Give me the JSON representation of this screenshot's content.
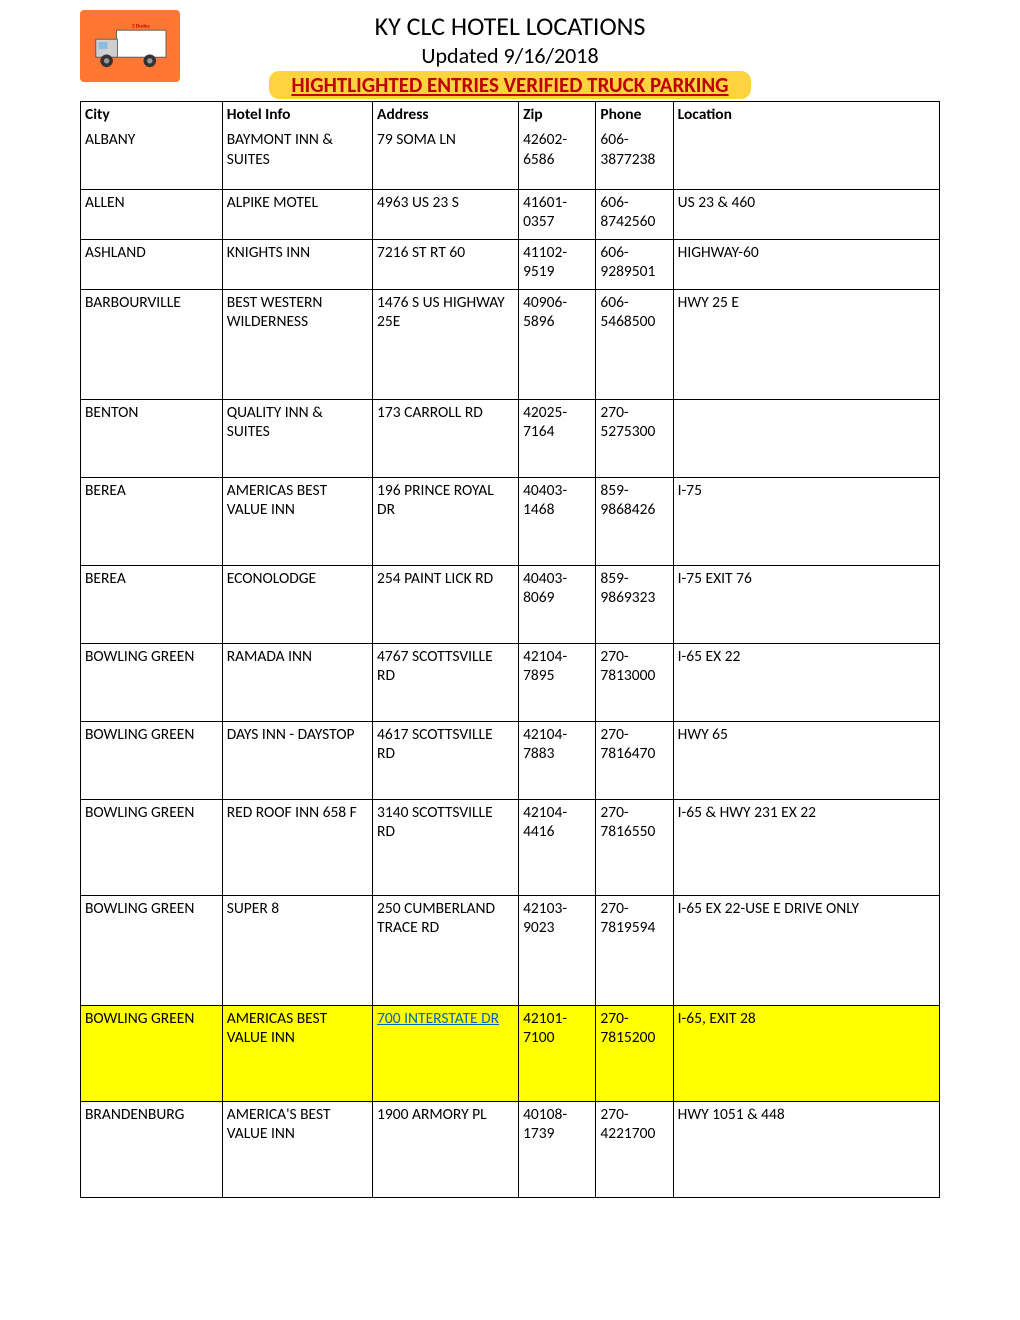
{
  "header": {
    "title": "KY CLC HOTEL LOCATIONS",
    "subtitle": "Updated 9/16/2018",
    "banner": "HIGHTLIGHTED ENTRIES VERIFIED TRUCK PARKING"
  },
  "colors": {
    "banner_bg": "#ffd33d",
    "banner_text": "#c00000",
    "highlight_bg": "#ffff00",
    "link": "#0563c1",
    "logo_bg": "#ff7733"
  },
  "columns": [
    "City",
    "Hotel Info",
    "Address",
    "Zip",
    "Phone",
    "Location"
  ],
  "rows": [
    {
      "city": "ALBANY",
      "hotel": "BAYMONT INN & SUITES",
      "address": "79 SOMA LN",
      "zip": "42602-6586",
      "phone": "606-3877238",
      "location": "",
      "hl": false,
      "rh": "62"
    },
    {
      "city": "ALLEN",
      "hotel": "ALPIKE MOTEL",
      "address": "4963 US 23 S",
      "zip": "41601-0357",
      "phone": "606-8742560",
      "location": "US 23 & 460",
      "hl": false,
      "rh": "50"
    },
    {
      "city": "ASHLAND",
      "hotel": "KNIGHTS INN",
      "address": "7216 ST RT 60",
      "zip": "41102-9519",
      "phone": "606-9289501",
      "location": "HIGHWAY-60",
      "hl": false,
      "rh": "50"
    },
    {
      "city": "BARBOURVILLE",
      "hotel": "BEST WESTERN WILDERNESS",
      "address": "1476 S US HIGHWAY 25E",
      "zip": "40906-5896",
      "phone": "606-5468500",
      "location": "HWY 25 E",
      "hl": false,
      "rh": "110"
    },
    {
      "city": "BENTON",
      "hotel": "QUALITY INN & SUITES",
      "address": "173 CARROLL RD",
      "zip": "42025-7164",
      "phone": "270-5275300",
      "location": "",
      "hl": false,
      "rh": "78"
    },
    {
      "city": "BEREA",
      "hotel": "AMERICAS BEST VALUE INN",
      "address": "196 PRINCE ROYAL DR",
      "zip": "40403-1468",
      "phone": "859-9868426",
      "location": "I-75",
      "hl": false,
      "rh": "88"
    },
    {
      "city": "BEREA",
      "hotel": "ECONOLODGE",
      "address": "254 PAINT LICK RD",
      "zip": "40403-8069",
      "phone": "859-9869323",
      "location": "I-75 EXIT 76",
      "hl": false,
      "rh": "78"
    },
    {
      "city": "BOWLING GREEN",
      "hotel": "RAMADA INN",
      "address": "4767 SCOTTSVILLE RD",
      "zip": "42104-7895",
      "phone": "270-7813000",
      "location": "I-65 EX 22",
      "hl": false,
      "rh": "78"
    },
    {
      "city": "BOWLING GREEN",
      "hotel": "DAYS INN - DAYSTOP",
      "address": "4617 SCOTTSVILLE RD",
      "zip": "42104-7883",
      "phone": "270-7816470",
      "location": "HWY 65",
      "hl": false,
      "rh": "78"
    },
    {
      "city": "BOWLING GREEN",
      "hotel": "RED ROOF INN 658 F",
      "address": "3140 SCOTTSVILLE RD",
      "zip": "42104-4416",
      "phone": "270-7816550",
      "location": "I-65 & HWY 231 EX 22",
      "hl": false,
      "rh": "96"
    },
    {
      "city": "BOWLING GREEN",
      "hotel": "SUPER 8",
      "address": "250 CUMBERLAND TRACE RD",
      "zip": "42103-9023",
      "phone": "270-7819594",
      "location": "I-65 EX 22-USE E DRIVE ONLY",
      "hl": false,
      "rh": "110"
    },
    {
      "city": "BOWLING GREEN",
      "hotel": "AMERICAS BEST VALUE INN",
      "address": "700 INTERSTATE DR",
      "zip": "42101-7100",
      "phone": "270-7815200",
      "location": "I-65, EXIT 28",
      "hl": true,
      "rh": "96"
    },
    {
      "city": "BRANDENBURG",
      "hotel": "AMERICA'S BEST VALUE INN",
      "address": "1900 ARMORY PL",
      "zip": "40108-1739",
      "phone": "270-4221700",
      "location": "HWY 1051 & 448",
      "hl": false,
      "rh": "96"
    }
  ]
}
